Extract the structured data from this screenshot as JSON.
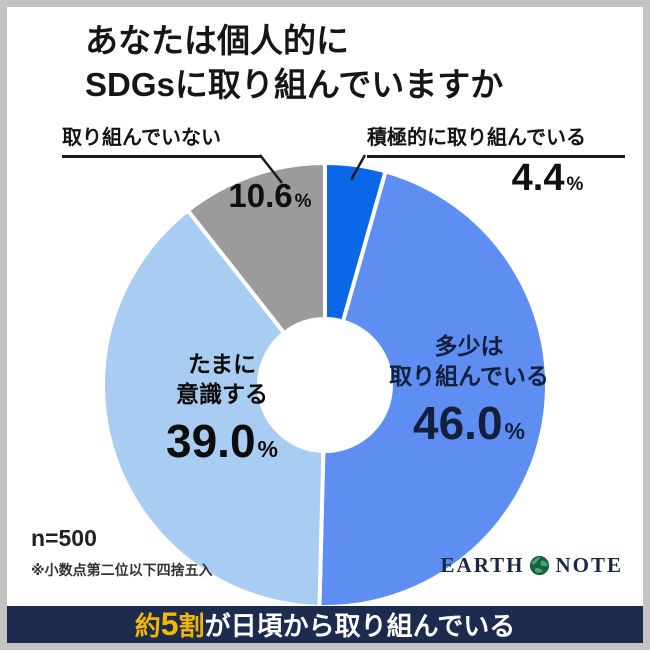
{
  "title": {
    "line1": "あなたは個人的に",
    "line2": "SDGsに取り組んでいますか"
  },
  "chart_data": {
    "type": "pie",
    "donut": true,
    "title": "あなたは個人的にSDGsに取り組んでいますか",
    "legend": "none",
    "start_angle_deg": 0,
    "segments": [
      {
        "label": "積極的に取り組んでいる",
        "value": 4.4,
        "value_label": "4.4",
        "unit": "%",
        "color": "#0a68e8"
      },
      {
        "label": "多少は取り組んでいる",
        "value": 46.0,
        "value_label": "46.0",
        "unit": "%",
        "color": "#5e8ef2",
        "label_lines": [
          "多少は",
          "取り組んでいる"
        ]
      },
      {
        "label": "たまに意識する",
        "value": 39.0,
        "value_label": "39.0",
        "unit": "%",
        "color": "#a8ccf2",
        "label_lines": [
          "たまに",
          "意識する"
        ]
      },
      {
        "label": "取り組んでいない",
        "value": 10.6,
        "value_label": "10.6",
        "unit": "%",
        "color": "#9b9b9b"
      }
    ],
    "sample_size": "n=500",
    "footnote": "※小数点第二位以下四捨五入"
  },
  "logo": {
    "earth": "EARTH",
    "note": "NOTE"
  },
  "banner": {
    "part_yaku": "約",
    "part_num": "5",
    "part_wari": "割",
    "rest": "が日頃から取り組んでいる"
  }
}
